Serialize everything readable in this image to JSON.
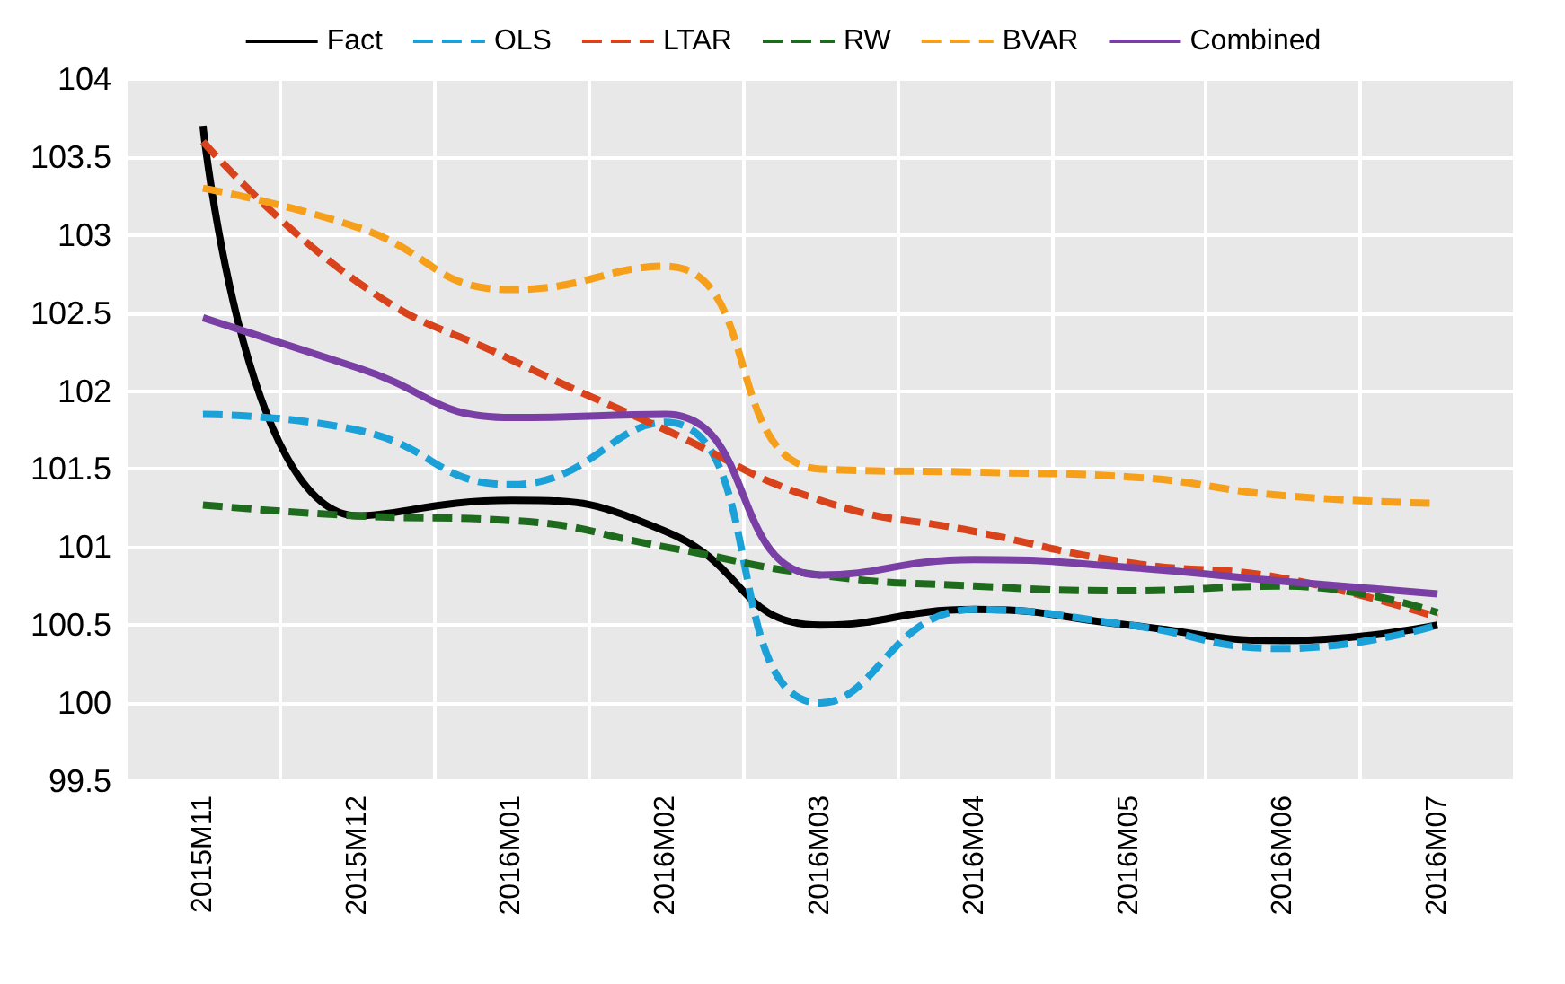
{
  "chart_data": {
    "type": "line",
    "categories": [
      "2015M11",
      "2015M12",
      "2016M01",
      "2016M02",
      "2016M03",
      "2016M04",
      "2016M05",
      "2016M06",
      "2016M07"
    ],
    "series": [
      {
        "name": "Fact",
        "color": "#000000",
        "line_style": "solid",
        "values": [
          103.7,
          101.2,
          101.3,
          101.1,
          100.5,
          100.6,
          100.5,
          100.4,
          100.5
        ]
      },
      {
        "name": "OLS",
        "color": "#1ba1d8",
        "line_style": "dashed",
        "values": [
          101.85,
          101.75,
          101.4,
          101.8,
          100.0,
          100.6,
          100.5,
          100.35,
          100.5
        ]
      },
      {
        "name": "LTAR",
        "color": "#d8431b",
        "line_style": "dashed",
        "values": [
          103.6,
          102.7,
          102.2,
          101.75,
          101.3,
          101.1,
          100.9,
          100.8,
          100.55
        ]
      },
      {
        "name": "RW",
        "color": "#1e6b1e",
        "line_style": "dashed",
        "values": [
          101.27,
          101.2,
          101.17,
          101.0,
          100.82,
          100.75,
          100.72,
          100.75,
          100.58
        ]
      },
      {
        "name": "BVAR",
        "color": "#f59f1a",
        "line_style": "dashed",
        "values": [
          103.3,
          103.05,
          102.65,
          102.8,
          101.5,
          101.48,
          101.45,
          101.33,
          101.28
        ]
      },
      {
        "name": "Combined",
        "color": "#7a3fa5",
        "line_style": "solid",
        "values": [
          102.47,
          102.15,
          101.83,
          101.85,
          100.82,
          100.92,
          100.87,
          100.78,
          100.7
        ]
      }
    ],
    "ylim": [
      99.5,
      104
    ],
    "yticks": [
      99.5,
      100,
      100.5,
      101,
      101.5,
      102,
      102.5,
      103,
      103.5,
      104
    ],
    "grid": true,
    "legend": "top",
    "marker": "none"
  }
}
